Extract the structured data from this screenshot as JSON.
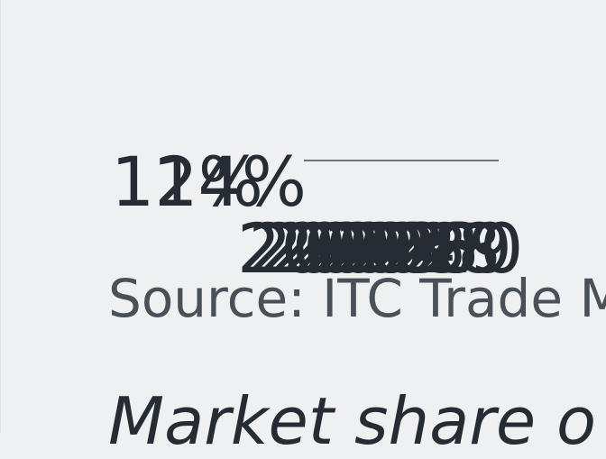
{
  "source": "Source: ITC Trade M",
  "subtitle": "Market share o",
  "colors": {
    "background": "#eef0f2",
    "text": "#262c33",
    "line": "#454b52"
  },
  "chart_data": {
    "type": "line",
    "title": "",
    "xlabel": "",
    "ylabel": "",
    "x": [
      2020,
      2021,
      2022,
      2023,
      2024,
      2025,
      2026,
      2027,
      2028,
      2029,
      2030
    ],
    "series": [
      {
        "values": [
          14,
          14,
          14,
          14,
          14,
          14,
          14,
          14,
          14,
          14,
          14
        ]
      }
    ],
    "y_tick_labels": [
      "12%",
      "14%"
    ],
    "x_tick_labels": [
      "2020",
      "2021",
      "2022",
      "2023",
      "2024",
      "2025",
      "2026",
      "2027",
      "2028",
      "2029",
      "2030"
    ],
    "ylim": [
      12,
      14
    ],
    "grid": false
  }
}
